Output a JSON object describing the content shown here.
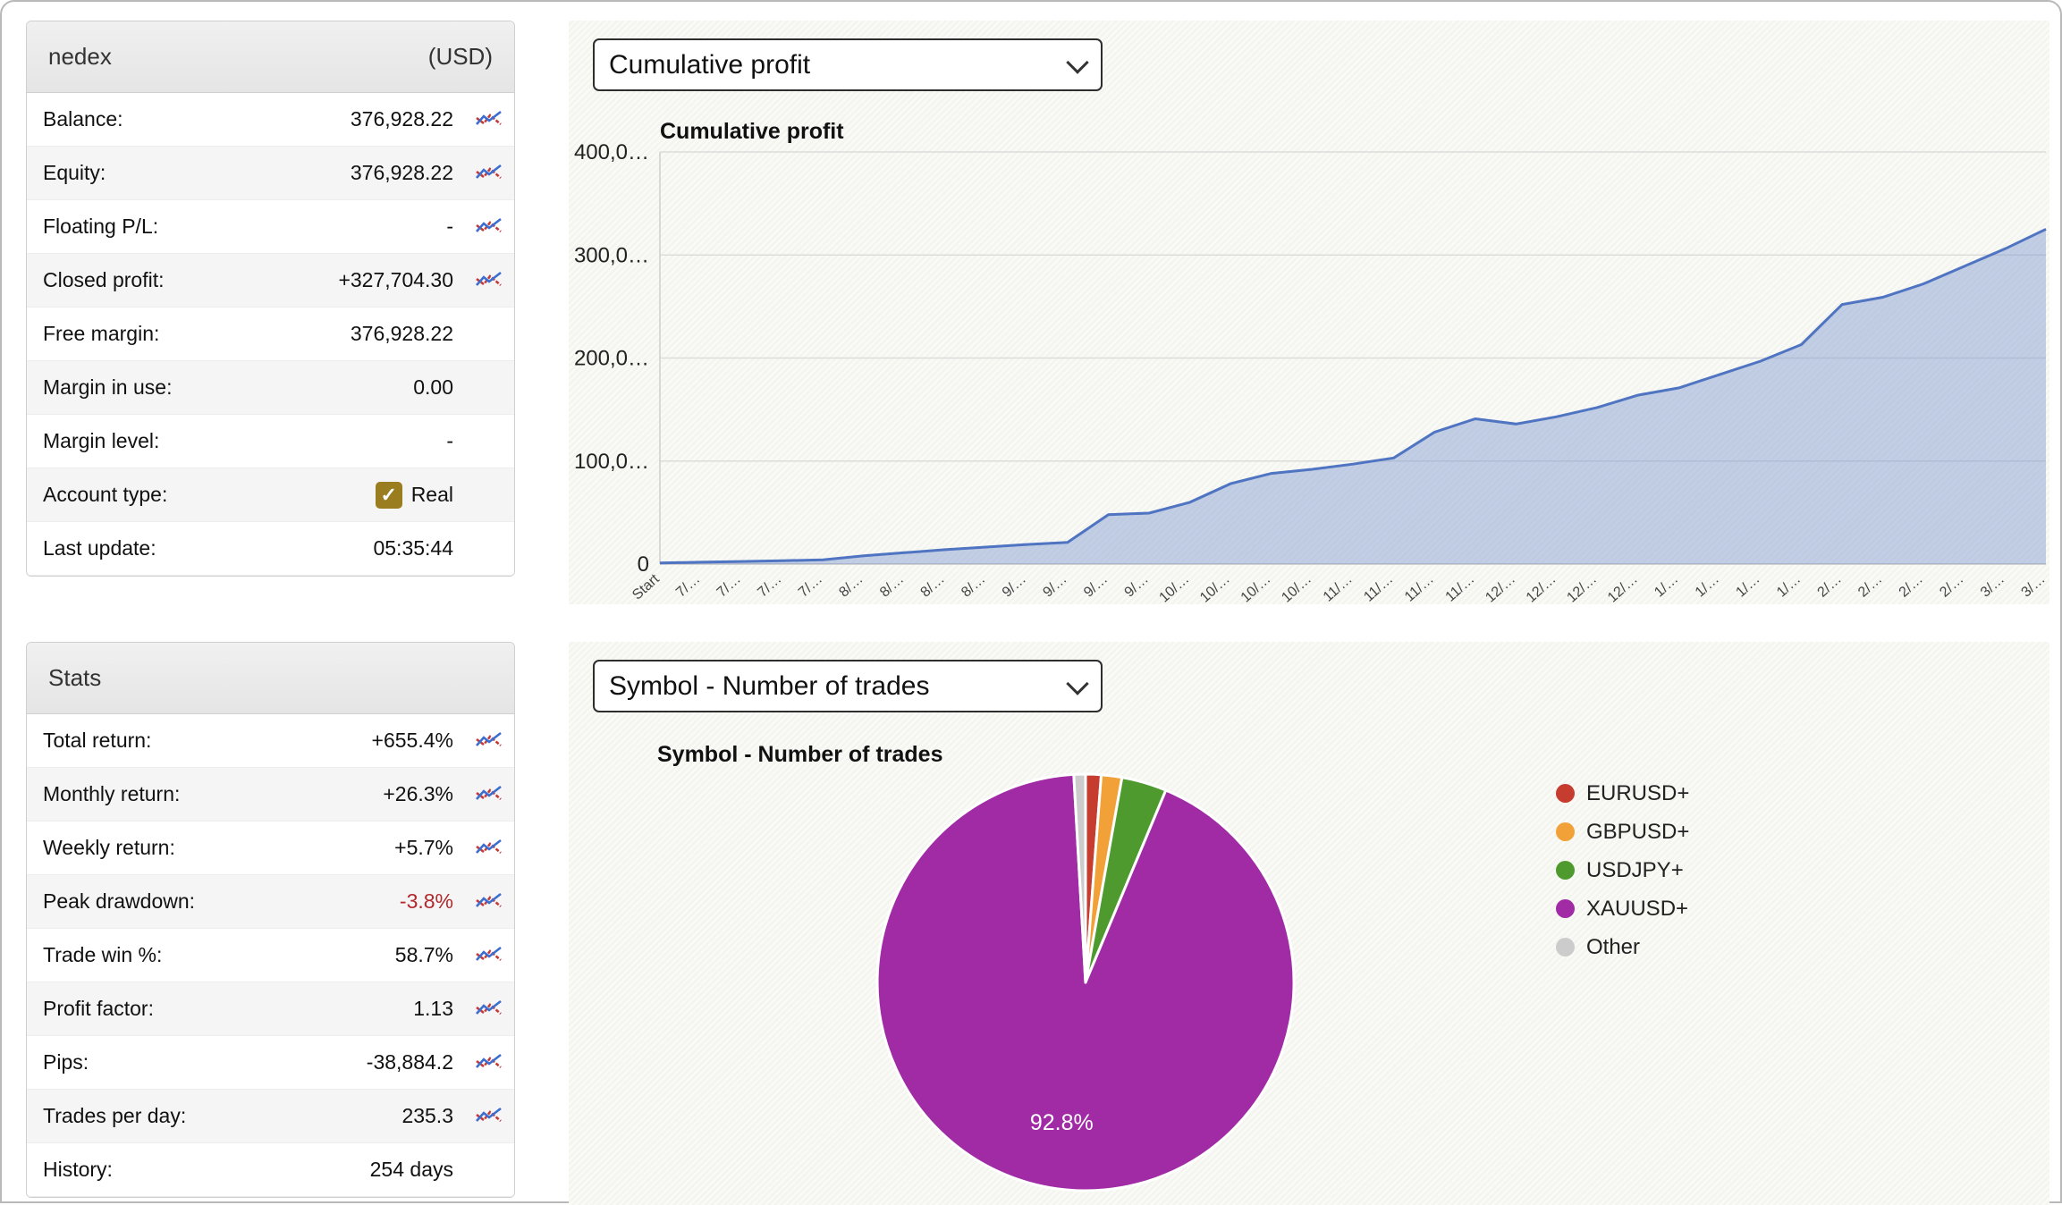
{
  "account": {
    "title": "nedex",
    "currency": "(USD)",
    "rows": [
      {
        "label": "Balance:",
        "value": "376,928.22",
        "icon": true
      },
      {
        "label": "Equity:",
        "value": "376,928.22",
        "icon": true
      },
      {
        "label": "Floating P/L:",
        "value": "-",
        "icon": true
      },
      {
        "label": "Closed profit:",
        "value": "+327,704.30",
        "icon": true
      },
      {
        "label": "Free margin:",
        "value": "376,928.22",
        "icon": false
      },
      {
        "label": "Margin in use:",
        "value": "0.00",
        "icon": false
      },
      {
        "label": "Margin level:",
        "value": "-",
        "icon": false
      },
      {
        "label": "Account type:",
        "value": "Real",
        "icon": false,
        "checkbox": true
      },
      {
        "label": "Last update:",
        "value": "05:35:44",
        "icon": false
      }
    ]
  },
  "stats": {
    "title": "Stats",
    "rows": [
      {
        "label": "Total return:",
        "value": "+655.4%",
        "icon": true
      },
      {
        "label": "Monthly return:",
        "value": "+26.3%",
        "icon": true
      },
      {
        "label": "Weekly return:",
        "value": "+5.7%",
        "icon": true
      },
      {
        "label": "Peak drawdown:",
        "value": "-3.8%",
        "icon": true,
        "color": "#b2282d"
      },
      {
        "label": "Trade win %:",
        "value": "58.7%",
        "icon": true
      },
      {
        "label": "Profit factor:",
        "value": "1.13",
        "icon": true
      },
      {
        "label": "Pips:",
        "value": "-38,884.2",
        "icon": true
      },
      {
        "label": "Trades per day:",
        "value": "235.3",
        "icon": true
      },
      {
        "label": "History:",
        "value": "254 days",
        "icon": false
      }
    ]
  },
  "profit_panel": {
    "dropdown_value": "Cumulative profit",
    "chart_title": "Cumulative profit"
  },
  "symbol_panel": {
    "dropdown_value": "Symbol - Number of trades",
    "chart_title": "Symbol - Number of trades"
  },
  "chart_data": [
    {
      "type": "area",
      "title": "Cumulative profit",
      "x": [
        "Start",
        "7/…",
        "7/…",
        "7/…",
        "7/…",
        "8/…",
        "8/…",
        "8/…",
        "8/…",
        "9/…",
        "9/…",
        "9/…",
        "9/…",
        "10/…",
        "10/…",
        "10/…",
        "10/…",
        "11/…",
        "11/…",
        "11/…",
        "11/…",
        "12/…",
        "12/…",
        "12/…",
        "12/…",
        "1/…",
        "1/…",
        "1/…",
        "1/…",
        "2/…",
        "2/…",
        "2/…",
        "2/…",
        "3/…",
        "3/…"
      ],
      "values": [
        1000,
        1800,
        2500,
        3200,
        4200,
        8000,
        11000,
        14000,
        16500,
        19000,
        21000,
        48000,
        49500,
        60000,
        78000,
        88000,
        92000,
        97000,
        103000,
        128000,
        141000,
        136000,
        143000,
        152000,
        164000,
        171000,
        184000,
        197000,
        213000,
        252000,
        259000,
        272000,
        289000,
        306000,
        325000
      ],
      "ylim": [
        0,
        400000
      ],
      "yticks": [
        0,
        100000,
        200000,
        300000,
        400000
      ],
      "ytick_labels": [
        "0",
        "100,0…",
        "200,0…",
        "300,0…",
        "400,0…"
      ],
      "line_color": "#4f74c2",
      "fill_color": "rgba(116,145,204,0.42)",
      "grid": true,
      "legend_position": "none"
    },
    {
      "type": "pie",
      "title": "Symbol - Number of trades",
      "labels": [
        "EURUSD+",
        "GBPUSD+",
        "USDJPY+",
        "XAUUSD+",
        "Other"
      ],
      "values": [
        1.2,
        1.6,
        3.5,
        92.8,
        0.9
      ],
      "colors": [
        "#c63d2f",
        "#f2a138",
        "#4e9a2e",
        "#a02ba5",
        "#cccccc"
      ],
      "slice_label": {
        "text": "92.8%",
        "slice_index": 3,
        "color": "#ffffff"
      },
      "legend_position": "right"
    }
  ]
}
